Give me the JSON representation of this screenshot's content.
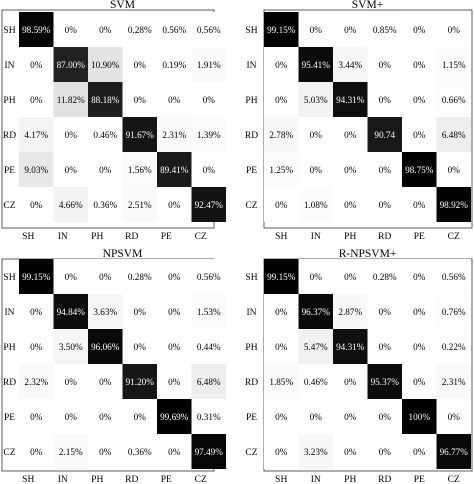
{
  "chart_data": [
    {
      "type": "heatmap",
      "title": "SVM",
      "rows": [
        "SH",
        "IN",
        "PH",
        "RD",
        "PE",
        "CZ"
      ],
      "cols": [
        "SH",
        "IN",
        "PH",
        "RD",
        "PE",
        "CZ"
      ],
      "values": [
        [
          98.59,
          0,
          0,
          0.28,
          0.56,
          0.56
        ],
        [
          0,
          87.0,
          10.9,
          0,
          0.19,
          1.91
        ],
        [
          0,
          11.82,
          88.18,
          0,
          0,
          0
        ],
        [
          4.17,
          0,
          0.46,
          91.67,
          2.31,
          1.39
        ],
        [
          9.03,
          0,
          0,
          1.56,
          89.41,
          0
        ],
        [
          0,
          4.66,
          0.36,
          2.51,
          0,
          92.47
        ]
      ],
      "labels": [
        [
          "98.59%",
          "0%",
          "0%",
          "0.28%",
          "0.56%",
          "0.56%"
        ],
        [
          "0%",
          "87.00%",
          "10.90%",
          "0%",
          "0.19%",
          "1.91%"
        ],
        [
          "0%",
          "11.82%",
          "88.18%",
          "0%",
          "0%",
          "0%"
        ],
        [
          "4.17%",
          "0%",
          "0.46%",
          "91.67%",
          "2.31%",
          "1.39%"
        ],
        [
          "9.03%",
          "0%",
          "0%",
          "1.56%",
          "89.41%",
          "0%"
        ],
        [
          "0%",
          "4.66%",
          "0.36%",
          "2.51%",
          "0%",
          "92.47%"
        ]
      ]
    },
    {
      "type": "heatmap",
      "title": "SVM+",
      "rows": [
        "SH",
        "IN",
        "PH",
        "RD",
        "PE",
        "CZ"
      ],
      "cols": [
        "SH",
        "IN",
        "PH",
        "RD",
        "PE",
        "CZ"
      ],
      "values": [
        [
          99.15,
          0,
          0,
          0.85,
          0,
          0
        ],
        [
          0,
          95.41,
          3.44,
          0,
          0,
          1.15
        ],
        [
          0,
          5.03,
          94.31,
          0,
          0,
          0.66
        ],
        [
          2.78,
          0,
          0,
          90.74,
          0,
          6.48
        ],
        [
          1.25,
          0,
          0,
          0,
          98.75,
          0
        ],
        [
          0,
          1.08,
          0,
          0,
          0,
          98.92
        ]
      ],
      "labels": [
        [
          "99.15%",
          "0%",
          "0%",
          "0.85%",
          "0%",
          "0%"
        ],
        [
          "0%",
          "95.41%",
          "3.44%",
          "0%",
          "0%",
          "1.15%"
        ],
        [
          "0%",
          "5.03%",
          "94.31%",
          "0%",
          "0%",
          "0.66%"
        ],
        [
          "2.78%",
          "0%",
          "0%",
          "90.74",
          "0%",
          "6.48%"
        ],
        [
          "1.25%",
          "0%",
          "0%",
          "0%",
          "98.75%",
          "0%"
        ],
        [
          "0%",
          "1.08%",
          "0%",
          "0%",
          "0%",
          "98.92%"
        ]
      ]
    },
    {
      "type": "heatmap",
      "title": "NPSVM",
      "rows": [
        "SH",
        "IN",
        "PH",
        "RD",
        "PE",
        "CZ"
      ],
      "cols": [
        "SH",
        "IN",
        "PH",
        "RD",
        "PE",
        "CZ"
      ],
      "values": [
        [
          99.15,
          0,
          0,
          0.28,
          0,
          0.56
        ],
        [
          0,
          94.84,
          3.63,
          0,
          0,
          1.53
        ],
        [
          0,
          3.5,
          96.06,
          0,
          0,
          0.44
        ],
        [
          2.32,
          0,
          0,
          91.2,
          0,
          6.48
        ],
        [
          0,
          0,
          0,
          0,
          99.69,
          0.31
        ],
        [
          0,
          2.15,
          0,
          0.36,
          0,
          97.49
        ]
      ],
      "labels": [
        [
          "99.15%",
          "0%",
          "0%",
          "0.28%",
          "0%",
          "0.56%"
        ],
        [
          "0%",
          "94.84%",
          "3.63%",
          "0%",
          "0%",
          "1.53%"
        ],
        [
          "0%",
          "3.50%",
          "96.06%",
          "0%",
          "0%",
          "0.44%"
        ],
        [
          "2.32%",
          "0%",
          "0%",
          "91.20%",
          "0%",
          "6.48%"
        ],
        [
          "0%",
          "0%",
          "0%",
          "0%",
          "99.69%",
          "0.31%"
        ],
        [
          "0%",
          "2.15%",
          "0%",
          "0.36%",
          "0%",
          "97.49%"
        ]
      ]
    },
    {
      "type": "heatmap",
      "title": "R-NPSVM+",
      "rows": [
        "SH",
        "IN",
        "PH",
        "RD",
        "PE",
        "CZ"
      ],
      "cols": [
        "SH",
        "IN",
        "PH",
        "RD",
        "PE",
        "CZ"
      ],
      "values": [
        [
          99.15,
          0,
          0,
          0.28,
          0,
          0.56
        ],
        [
          0,
          96.37,
          2.87,
          0,
          0,
          0.76
        ],
        [
          0,
          5.47,
          94.31,
          0,
          0,
          0.22
        ],
        [
          1.85,
          0.46,
          0,
          95.37,
          0,
          2.31
        ],
        [
          0,
          0,
          0,
          0,
          100,
          0
        ],
        [
          0,
          3.23,
          0,
          0,
          0,
          96.77
        ]
      ],
      "labels": [
        [
          "99.15%",
          "0%",
          "0%",
          "0.28%",
          "0%",
          "0.56%"
        ],
        [
          "0%",
          "96.37%",
          "2.87%",
          "0%",
          "0%",
          "0.76%"
        ],
        [
          "0%",
          "5.47%",
          "94.31%",
          "0%",
          "0%",
          "0.22%"
        ],
        [
          "1.85%",
          "0.46%",
          "0%",
          "95.37%",
          "0%",
          "2.31%"
        ],
        [
          "0%",
          "0%",
          "0%",
          "0%",
          "100%",
          "0%"
        ],
        [
          "0%",
          "3.23%",
          "0%",
          "0%",
          "0%",
          "96.77%"
        ]
      ]
    }
  ]
}
